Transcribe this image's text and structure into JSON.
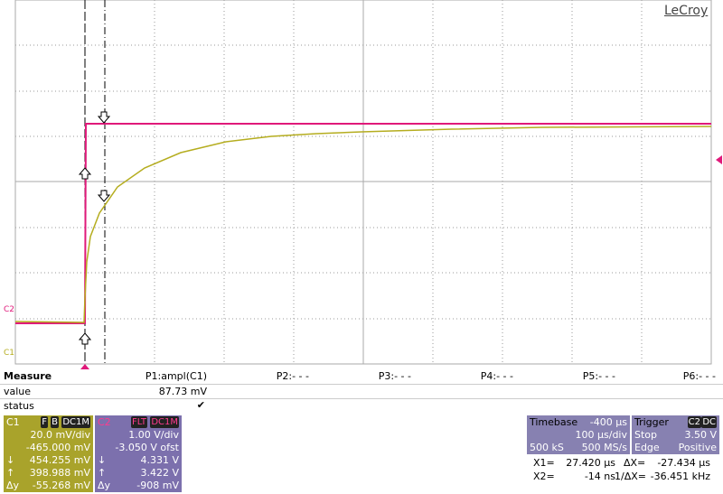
{
  "logo": "LeCroy",
  "channel_markers": {
    "c2": "C2",
    "c1": "C1"
  },
  "measure": {
    "title": "Measure",
    "value_label": "value",
    "status_label": "status",
    "params": [
      "P1:ampl(C1)",
      "P2:- - -",
      "P3:- - -",
      "P4:- - -",
      "P5:- - -",
      "P6:- - -"
    ],
    "values": [
      "87.73 mV"
    ],
    "status": [
      "✔"
    ]
  },
  "c1": {
    "name": "C1",
    "tags": [
      "F",
      "B",
      "DC1M"
    ],
    "scale": "20.0 mV/div",
    "offset": "-465.000 mV",
    "cursors": [
      {
        "symbol": "↓",
        "value": "454.255 mV"
      },
      {
        "symbol": "↑",
        "value": "398.988 mV"
      },
      {
        "symbol": "Δy",
        "value": "-55.268 mV"
      }
    ]
  },
  "c2": {
    "name": "C2",
    "tags": [
      "FLT",
      "DC1M"
    ],
    "scale": "1.00 V/div",
    "offset": "-3.050 V ofst",
    "cursors": [
      {
        "symbol": "↓",
        "value": "4.331 V"
      },
      {
        "symbol": "↑",
        "value": "3.422 V"
      },
      {
        "symbol": "Δy",
        "value": "-908 mV"
      }
    ]
  },
  "timebase": {
    "title": "Timebase",
    "delay": "-400 µs",
    "scale": "100 µs/div",
    "samples": "500 kS",
    "rate": "500 MS/s"
  },
  "trigger": {
    "title": "Trigger",
    "source": "C2",
    "coupling": "DC",
    "mode": "Stop",
    "level": "3.50 V",
    "type": "Edge",
    "slope": "Positive"
  },
  "cursor_readouts": [
    {
      "label": "X1=",
      "value": "27.420 µs"
    },
    {
      "label": "ΔX=",
      "value": "-27.434 µs"
    },
    {
      "label": "X2=",
      "value": "-14 ns"
    },
    {
      "label": "1/ΔX=",
      "value": "-36.451 kHz"
    }
  ]
}
